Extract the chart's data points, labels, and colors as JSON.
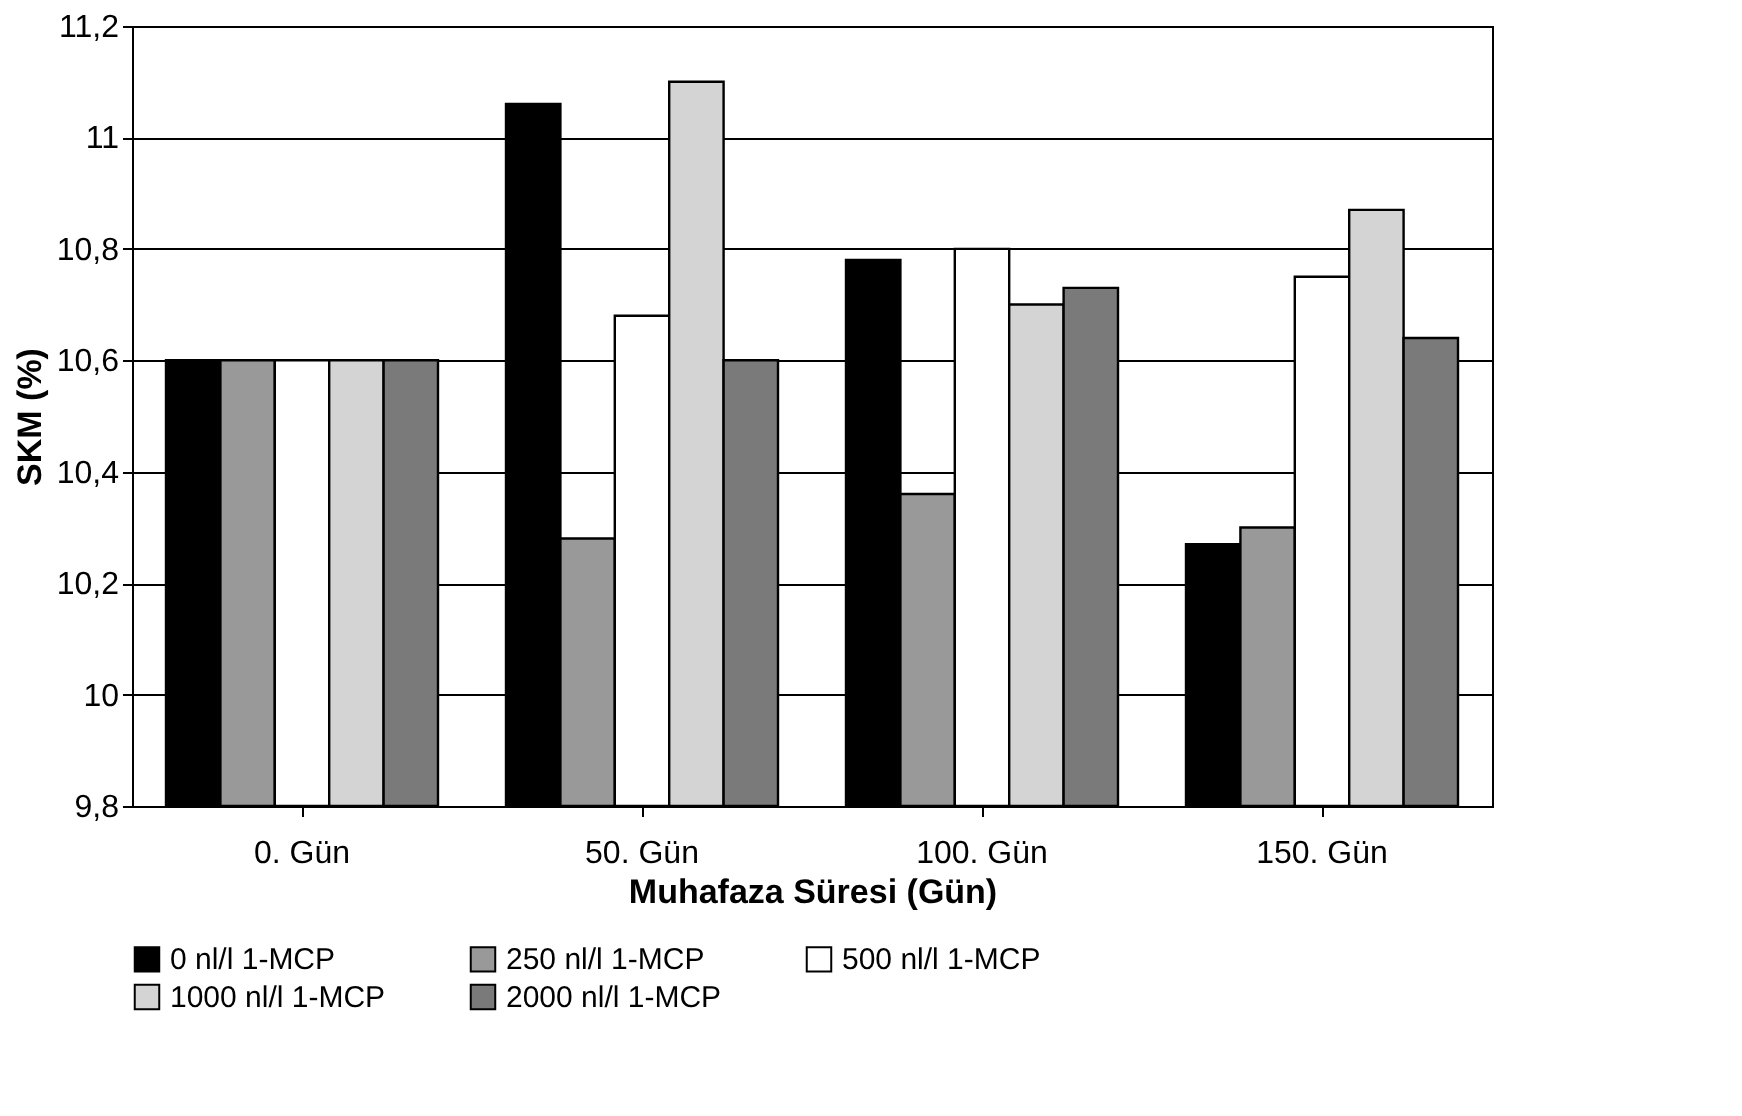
{
  "chart_data": {
    "type": "bar",
    "xlabel": "Muhafaza Süresi (Gün)",
    "ylabel": "SKM (%)",
    "categories": [
      "0. Gün",
      "50. Gün",
      "100. Gün",
      "150. Gün"
    ],
    "series": [
      {
        "name": "0 nl/l 1-MCP",
        "color": "#000000",
        "values": [
          10.6,
          11.06,
          10.78,
          10.27
        ]
      },
      {
        "name": "250 nl/l 1-MCP",
        "color": "#999999",
        "values": [
          10.6,
          10.28,
          10.36,
          10.3
        ]
      },
      {
        "name": "500 nl/l 1-MCP",
        "color": "#ffffff",
        "values": [
          10.6,
          10.68,
          10.8,
          10.75
        ]
      },
      {
        "name": "1000 nl/l 1-MCP",
        "color": "#d4d4d4",
        "values": [
          10.6,
          11.1,
          10.7,
          10.87
        ]
      },
      {
        "name": "2000 nl/l 1-MCP",
        "color": "#7a7a7a",
        "values": [
          10.6,
          10.6,
          10.73,
          10.64
        ]
      }
    ],
    "ylim": [
      9.8,
      11.2
    ],
    "yticks": [
      {
        "value": 9.8,
        "label": "9,8"
      },
      {
        "value": 10,
        "label": "10"
      },
      {
        "value": 10.2,
        "label": "10,2"
      },
      {
        "value": 10.4,
        "label": "10,4"
      },
      {
        "value": 10.6,
        "label": "10,6"
      },
      {
        "value": 10.8,
        "label": "10,8"
      },
      {
        "value": 11,
        "label": "11"
      },
      {
        "value": 11.2,
        "label": "11,2"
      }
    ],
    "grid": "y",
    "legend": "bottom"
  }
}
